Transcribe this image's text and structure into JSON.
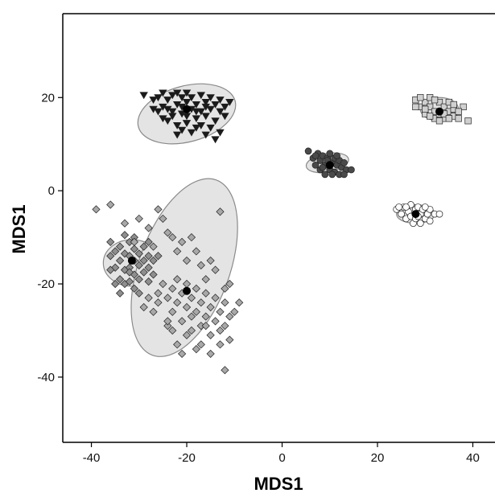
{
  "chart_data": {
    "type": "scatter",
    "title": "",
    "xlabel": "MDS1",
    "ylabel": "MDS1",
    "xlim": [
      -46,
      46
    ],
    "ylim": [
      -54,
      38
    ],
    "xticks": [
      -40,
      -20,
      0,
      20,
      40
    ],
    "yticks": [
      20,
      0,
      -20,
      -40
    ],
    "grid": false,
    "colors": {
      "ellipse_fill": "#e4e4e4",
      "ellipse_stroke": "#8a8a8a",
      "marker_dark": "#1a1a1a",
      "marker_mid": "#4a4a4a",
      "marker_grey": "#9a9a9a",
      "marker_light": "#d0d0d0",
      "marker_white": "#ffffff"
    },
    "series": [
      {
        "marker": "triangle-down",
        "fill": "#1a1a1a",
        "centroid": [
          -20,
          17.5
        ],
        "ellipse": {
          "cx": -20,
          "cy": 16.5,
          "rx": 10.5,
          "ry": 6,
          "angle": -15
        },
        "points": [
          [
            -29,
            20.5
          ],
          [
            -27,
            19.5
          ],
          [
            -26,
            20
          ],
          [
            -25,
            21
          ],
          [
            -25,
            18
          ],
          [
            -24,
            19.5
          ],
          [
            -23,
            20.5
          ],
          [
            -23,
            17
          ],
          [
            -22,
            21
          ],
          [
            -22,
            18.5
          ],
          [
            -21,
            20
          ],
          [
            -21,
            16.5
          ],
          [
            -20,
            19
          ],
          [
            -20,
            21
          ],
          [
            -19,
            17.5
          ],
          [
            -19,
            20
          ],
          [
            -18,
            18.5
          ],
          [
            -18,
            15.5
          ],
          [
            -17,
            20.5
          ],
          [
            -17,
            17
          ],
          [
            -16,
            19
          ],
          [
            -16,
            16
          ],
          [
            -15,
            20
          ],
          [
            -15,
            17.5
          ],
          [
            -14,
            18.5
          ],
          [
            -14,
            15
          ],
          [
            -13,
            19.5
          ],
          [
            -13,
            17
          ],
          [
            -12,
            18
          ],
          [
            -11,
            19
          ],
          [
            -26,
            17
          ],
          [
            -24,
            15
          ],
          [
            -22,
            14
          ],
          [
            -21,
            13
          ],
          [
            -20,
            14.5
          ],
          [
            -19,
            12.5
          ],
          [
            -18,
            13.5
          ],
          [
            -17,
            14
          ],
          [
            -16,
            12
          ],
          [
            -15,
            13.5
          ],
          [
            -14,
            11
          ],
          [
            -23,
            16
          ],
          [
            -22,
            12
          ],
          [
            -25,
            15.5
          ],
          [
            -20,
            16
          ],
          [
            -18,
            17
          ],
          [
            -16,
            18
          ],
          [
            -13,
            12.5
          ],
          [
            -27,
            17.5
          ],
          [
            -24,
            17.5
          ],
          [
            -21,
            18
          ],
          [
            -12,
            16
          ]
        ]
      },
      {
        "marker": "square",
        "fill": "#d0d0d0",
        "centroid": [
          33,
          17
        ],
        "ellipse": {
          "cx": 33,
          "cy": 17.5,
          "rx": 4,
          "ry": 2.5,
          "angle": 0
        },
        "points": [
          [
            28,
            19.5
          ],
          [
            29,
            18
          ],
          [
            30,
            19
          ],
          [
            30,
            16.5
          ],
          [
            31,
            18
          ],
          [
            31,
            20
          ],
          [
            32,
            17
          ],
          [
            32,
            15.5
          ],
          [
            33,
            19
          ],
          [
            33,
            16.5
          ],
          [
            34,
            18
          ],
          [
            34,
            15.5
          ],
          [
            35,
            17
          ],
          [
            35,
            19
          ],
          [
            36,
            16
          ],
          [
            36,
            17.5
          ],
          [
            37,
            15.5
          ],
          [
            38,
            18
          ],
          [
            39,
            15
          ],
          [
            29,
            20
          ],
          [
            31,
            16
          ],
          [
            32,
            19.5
          ],
          [
            33,
            15
          ],
          [
            34,
            16.5
          ],
          [
            35,
            15.5
          ],
          [
            28,
            18
          ],
          [
            30,
            17.5
          ],
          [
            36,
            18.5
          ],
          [
            37,
            17
          ]
        ]
      },
      {
        "marker": "circle",
        "fill": "#4a4a4a",
        "centroid": [
          10,
          5.5
        ],
        "ellipse": {
          "cx": 9.5,
          "cy": 6,
          "rx": 4.5,
          "ry": 2,
          "angle": -10
        },
        "points": [
          [
            5.5,
            8.5
          ],
          [
            6.5,
            7
          ],
          [
            7,
            5.5
          ],
          [
            7.5,
            8
          ],
          [
            8,
            6.5
          ],
          [
            8,
            4.5
          ],
          [
            8.5,
            7.5
          ],
          [
            9,
            5.5
          ],
          [
            9,
            3.5
          ],
          [
            9.5,
            7
          ],
          [
            10,
            4.5
          ],
          [
            10,
            8
          ],
          [
            10.5,
            6
          ],
          [
            11,
            4
          ],
          [
            11,
            7
          ],
          [
            11.5,
            5.5
          ],
          [
            12,
            6.5
          ],
          [
            12,
            3.5
          ],
          [
            12.5,
            5
          ],
          [
            13,
            6
          ],
          [
            13.5,
            4.5
          ],
          [
            14.5,
            4.5
          ],
          [
            7,
            7.5
          ],
          [
            9.5,
            6.5
          ],
          [
            10.5,
            3.5
          ],
          [
            11.5,
            7.5
          ],
          [
            8.5,
            5
          ],
          [
            13,
            3.5
          ]
        ]
      },
      {
        "marker": "circle",
        "fill": "#ffffff",
        "centroid": [
          28,
          -5
        ],
        "ellipse": {
          "cx": 28,
          "cy": -5,
          "rx": 4,
          "ry": 2,
          "angle": 0
        },
        "points": [
          [
            24,
            -4
          ],
          [
            25,
            -5
          ],
          [
            25.5,
            -3.5
          ],
          [
            26,
            -6
          ],
          [
            26.5,
            -4.5
          ],
          [
            27,
            -3
          ],
          [
            27,
            -5.5
          ],
          [
            27.5,
            -7
          ],
          [
            28,
            -4
          ],
          [
            28,
            -6
          ],
          [
            28.5,
            -3.5
          ],
          [
            29,
            -5
          ],
          [
            29,
            -7
          ],
          [
            29.5,
            -4
          ],
          [
            30,
            -6
          ],
          [
            30.5,
            -5
          ],
          [
            31,
            -4
          ],
          [
            32,
            -5
          ],
          [
            33,
            -5
          ],
          [
            26,
            -3.5
          ],
          [
            28.5,
            -5.5
          ],
          [
            30,
            -3.5
          ],
          [
            24.5,
            -3.5
          ],
          [
            31,
            -6.5
          ]
        ]
      },
      {
        "marker": "diamond",
        "fill": "#8e8e8e",
        "centroid": [
          -31.5,
          -15
        ],
        "ellipse": {
          "cx": -31.5,
          "cy": -15.5,
          "rx": 6,
          "ry": 5,
          "angle": 0
        },
        "points": [
          [
            -36,
            -11
          ],
          [
            -35,
            -13
          ],
          [
            -35,
            -16.5
          ],
          [
            -34,
            -15
          ],
          [
            -34,
            -12
          ],
          [
            -34,
            -19
          ],
          [
            -33,
            -13.5
          ],
          [
            -33,
            -17
          ],
          [
            -33,
            -20
          ],
          [
            -32,
            -11
          ],
          [
            -32,
            -14
          ],
          [
            -32,
            -16.5
          ],
          [
            -32,
            -19.5
          ],
          [
            -31,
            -12.5
          ],
          [
            -31,
            -15
          ],
          [
            -31,
            -18
          ],
          [
            -31,
            -21
          ],
          [
            -30,
            -13.5
          ],
          [
            -30,
            -16
          ],
          [
            -30,
            -19
          ],
          [
            -29,
            -12
          ],
          [
            -29,
            -15
          ],
          [
            -29,
            -17.5
          ],
          [
            -28,
            -14
          ],
          [
            -28,
            -16.5
          ],
          [
            -27,
            -15
          ],
          [
            -36,
            -17
          ],
          [
            -35,
            -20
          ],
          [
            -34,
            -22
          ],
          [
            -30,
            -22
          ],
          [
            -28,
            -19.5
          ],
          [
            -33,
            -9.5
          ],
          [
            -31,
            -10
          ],
          [
            -28,
            -11
          ],
          [
            -27,
            -18
          ],
          [
            -26,
            -14
          ],
          [
            -36,
            -14
          ],
          [
            -32,
            -17.5
          ]
        ]
      },
      {
        "marker": "diamond",
        "fill": "#a8a8a8",
        "centroid": [
          -20,
          -21.5
        ],
        "ellipse": {
          "cx": -20.5,
          "cy": -16.5,
          "rx": 9.5,
          "ry": 20,
          "angle": 20
        },
        "points": [
          [
            -39,
            -4
          ],
          [
            -36,
            -3
          ],
          [
            -33,
            -7
          ],
          [
            -30,
            -6
          ],
          [
            -28,
            -8
          ],
          [
            -27,
            -12
          ],
          [
            -26,
            -4
          ],
          [
            -25,
            -6
          ],
          [
            -24,
            -9
          ],
          [
            -23,
            -10
          ],
          [
            -22,
            -13
          ],
          [
            -21,
            -11
          ],
          [
            -20,
            -15
          ],
          [
            -19,
            -10
          ],
          [
            -18,
            -13
          ],
          [
            -17,
            -16
          ],
          [
            -16,
            -19
          ],
          [
            -15,
            -15
          ],
          [
            -14,
            -17
          ],
          [
            -13,
            -4.5
          ],
          [
            -12,
            -21
          ],
          [
            -9,
            -24
          ],
          [
            -25,
            -20
          ],
          [
            -24,
            -23
          ],
          [
            -23,
            -21
          ],
          [
            -23,
            -26
          ],
          [
            -22,
            -19
          ],
          [
            -22,
            -24
          ],
          [
            -21,
            -22
          ],
          [
            -21,
            -28
          ],
          [
            -20,
            -20
          ],
          [
            -20,
            -25
          ],
          [
            -19,
            -23
          ],
          [
            -19,
            -30
          ],
          [
            -18,
            -26
          ],
          [
            -18,
            -21
          ],
          [
            -17,
            -24
          ],
          [
            -17,
            -29
          ],
          [
            -16,
            -22
          ],
          [
            -16,
            -27
          ],
          [
            -15,
            -25
          ],
          [
            -15,
            -31
          ],
          [
            -14,
            -23
          ],
          [
            -14,
            -28
          ],
          [
            -13,
            -26
          ],
          [
            -13,
            -33
          ],
          [
            -12,
            -29
          ],
          [
            -12,
            -24
          ],
          [
            -11,
            -27
          ],
          [
            -22,
            -33
          ],
          [
            -21,
            -35
          ],
          [
            -20,
            -31
          ],
          [
            -18,
            -34
          ],
          [
            -17,
            -33
          ],
          [
            -16,
            -29
          ],
          [
            -15,
            -35
          ],
          [
            -13,
            -30
          ],
          [
            -12,
            -38.5
          ],
          [
            -24,
            -29
          ],
          [
            -23,
            -30
          ],
          [
            -26,
            -24
          ],
          [
            -27,
            -26
          ],
          [
            -24,
            -28
          ],
          [
            -19,
            -27
          ],
          [
            -11,
            -32
          ],
          [
            -11,
            -20
          ],
          [
            -10,
            -26
          ],
          [
            -26,
            -22
          ],
          [
            -28,
            -23
          ],
          [
            -31,
            -11
          ],
          [
            -29,
            -25
          ]
        ]
      }
    ]
  }
}
